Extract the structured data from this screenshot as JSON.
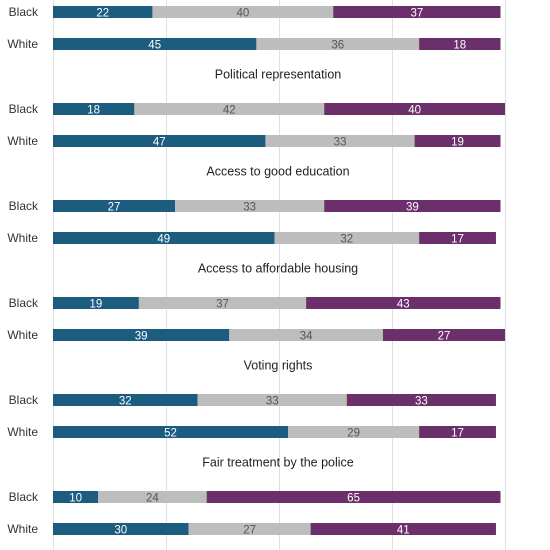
{
  "chart_data": {
    "type": "bar",
    "orientation": "horizontal",
    "stacked": true,
    "grid": true,
    "categories": [
      "",
      "Political representation",
      "Access to good education",
      "Access to affordable housing",
      "Voting rights",
      "Fair treatment by the police"
    ],
    "groups": [
      "Black",
      "White"
    ],
    "series": [
      {
        "color": "#1b5c7f",
        "label_color": "#ffffff",
        "values": [
          [
            22,
            45
          ],
          [
            18,
            47
          ],
          [
            27,
            49
          ],
          [
            19,
            39
          ],
          [
            32,
            52
          ],
          [
            10,
            30
          ]
        ]
      },
      {
        "color": "#bdbdbd",
        "label_color": "#555555",
        "values": [
          [
            40,
            36
          ],
          [
            42,
            33
          ],
          [
            33,
            32
          ],
          [
            37,
            34
          ],
          [
            33,
            29
          ],
          [
            24,
            27
          ]
        ]
      },
      {
        "color": "#6b2f6b",
        "label_color": "#ffffff",
        "values": [
          [
            37,
            18
          ],
          [
            40,
            19
          ],
          [
            39,
            17
          ],
          [
            43,
            27
          ],
          [
            33,
            17
          ],
          [
            65,
            41
          ]
        ]
      }
    ],
    "xlim": [
      0,
      100
    ]
  }
}
